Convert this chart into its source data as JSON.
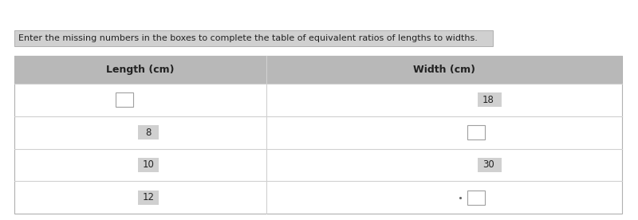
{
  "instruction": "Enter the missing numbers in the boxes to complete the table of equivalent ratios of lengths to widths.",
  "col1_header": "Length (cm)",
  "col2_header": "Width (cm)",
  "rows": [
    {
      "length": null,
      "width": "18"
    },
    {
      "length": "8",
      "width": null
    },
    {
      "length": "10",
      "width": "30"
    },
    {
      "length": "12",
      "width": null
    }
  ],
  "fig_bg": "#ffffff",
  "table_outer_border": "#b0b0b0",
  "table_inner_border": "#d0d0d0",
  "header_bg": "#b8b8b8",
  "cell_bg": "#ffffff",
  "input_box_border": "#a0a0a0",
  "instruction_bg": "#d0d0d0",
  "instruction_border": "#b0b0b0",
  "text_color": "#222222",
  "number_highlight_bg": "#d0d0d0",
  "dot_color": "#666666",
  "font_size": 8.5,
  "header_font_size": 9.0,
  "inst_font_size": 8.0
}
